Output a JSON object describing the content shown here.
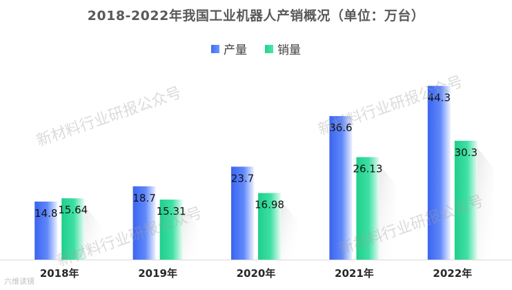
{
  "title": "2018-2022年我国工业机器人产销概况（单位：万台）",
  "watermark": "新材料行业研报公众号",
  "footer_logo": "六维读镜",
  "colors": {
    "production": "#3f6ef3",
    "sales": "#23d18e"
  },
  "chart_data": {
    "type": "bar",
    "title": "2018-2022年我国工业机器人产销概况（单位：万台）",
    "categories": [
      "2018年",
      "2019年",
      "2020年",
      "2021年",
      "2022年"
    ],
    "series": [
      {
        "name": "产量",
        "values": [
          14.8,
          18.7,
          23.7,
          36.6,
          44.3
        ],
        "labels": [
          "14.8",
          "18.7",
          "23.7",
          "36.6",
          "44.3"
        ]
      },
      {
        "name": "销量",
        "values": [
          15.64,
          15.31,
          16.98,
          26.13,
          30.3
        ],
        "labels": [
          "15.64",
          "15.31",
          "16.98",
          "26.13",
          "30.3"
        ]
      }
    ],
    "xlabel": "",
    "ylabel": "",
    "ylim": [
      0,
      50
    ],
    "legend_position": "top-center",
    "grid": false
  }
}
